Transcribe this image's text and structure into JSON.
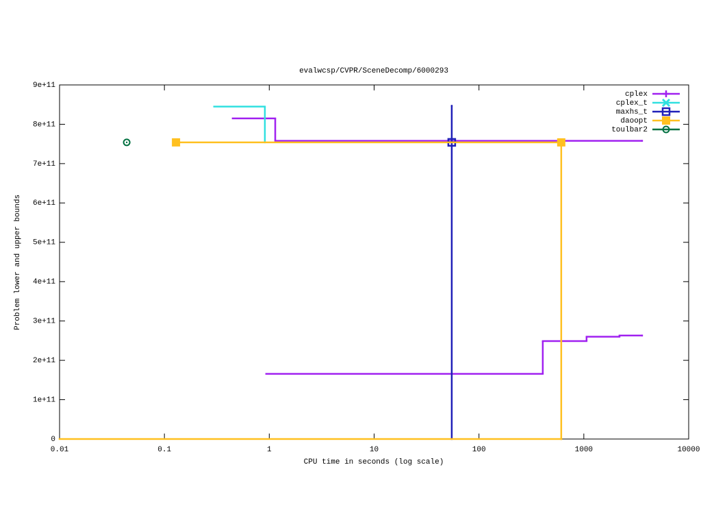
{
  "chart_data": {
    "type": "step",
    "title": "evalwcsp/CVPR/SceneDecomp/6000293",
    "x_label": "CPU time in seconds (log scale)",
    "y_label": "Problem lower and upper bounds",
    "x_log": true,
    "xlim": [
      0.01,
      10000
    ],
    "xticks": [
      0.01,
      0.1,
      1,
      10,
      100,
      1000,
      10000
    ],
    "ylim": [
      0,
      900000000000
    ],
    "yticks": [
      0,
      {
        "value": 100000000000,
        "label": "1e+11"
      },
      {
        "value": 200000000000,
        "label": "2e+11"
      },
      {
        "value": 300000000000,
        "label": "3e+11"
      },
      {
        "value": 400000000000,
        "label": "4e+11"
      },
      {
        "value": 500000000000,
        "label": "5e+11"
      },
      {
        "value": 600000000000,
        "label": "6e+11"
      },
      {
        "value": 700000000000,
        "label": "7e+11"
      },
      {
        "value": 800000000000,
        "label": "8e+11"
      },
      {
        "value": 900000000000,
        "label": "9e+11"
      }
    ],
    "legend": "top-right",
    "series": [
      {
        "name": "cplex",
        "color": "#a020f0",
        "marker": "plus",
        "lines": [
          {
            "x": [
              0.448,
              1.14,
              3590
            ],
            "values": [
              815000000000,
              758000000000,
              758000000000
            ]
          },
          {
            "x": [
              0.935,
              406,
              1062,
              2188,
              3590
            ],
            "values": [
              165500000000,
              249000000000,
              260000000000,
              263000000000,
              263000000000
            ]
          }
        ],
        "markers": {
          "x": [],
          "values": []
        }
      },
      {
        "name": "cplex_t",
        "color": "#30e0e0",
        "marker": "cross",
        "lines": [
          {
            "x": [
              0.298,
              0.908
            ],
            "values": [
              845000000000,
              754000000000
            ]
          }
        ],
        "markers": {
          "x": [],
          "values": []
        }
      },
      {
        "name": "maxhs_t",
        "color": "#2020b8",
        "marker": "square-open",
        "lines": [
          {
            "x": [
              55,
              55
            ],
            "values": [
              847000000000,
              0
            ]
          }
        ],
        "markers": {
          "x": [
            55
          ],
          "values": [
            754000000000
          ]
        }
      },
      {
        "name": "daoopt",
        "color": "#ffc020",
        "marker": "square",
        "lines": [
          {
            "x": [
              0.129,
              609,
              609
            ],
            "values": [
              754000000000,
              754000000000,
              0
            ]
          },
          {
            "x": [
              0.01,
              609
            ],
            "values": [
              0,
              0
            ]
          }
        ],
        "markers": {
          "x": [
            0.129,
            609
          ],
          "values": [
            754000000000,
            754000000000
          ]
        }
      },
      {
        "name": "toulbar2",
        "color": "#007040",
        "marker": "circle-dot",
        "lines": [],
        "markers": {
          "x": [
            0.0437
          ],
          "values": [
            754000000000
          ]
        }
      }
    ]
  }
}
